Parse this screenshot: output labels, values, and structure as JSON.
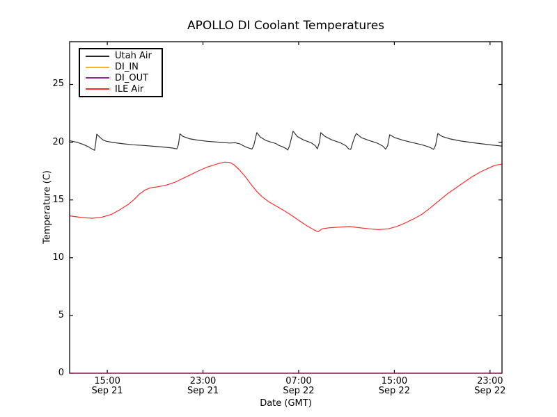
{
  "chart_data": {
    "type": "line",
    "title": "APOLLO DI Coolant Temperatures",
    "xlabel": "Date (GMT)",
    "ylabel": "Temperature (C)",
    "x_unit": "hours since Sep 21 00:00 GMT",
    "x_range": [
      11.85,
      48.0
    ],
    "y_range": [
      0,
      28.7
    ],
    "grid": false,
    "legend_position": "upper left",
    "background": "#ffffff",
    "axis_color": "#000000",
    "y_ticks": [
      0,
      5,
      10,
      15,
      20,
      25
    ],
    "x_ticks": [
      {
        "x": 15,
        "line1": "15:00",
        "line2": "Sep 21"
      },
      {
        "x": 23,
        "line1": "23:00",
        "line2": "Sep 21"
      },
      {
        "x": 31,
        "line1": "07:00",
        "line2": "Sep 22"
      },
      {
        "x": 39,
        "line1": "15:00",
        "line2": "Sep 22"
      },
      {
        "x": 47,
        "line1": "23:00",
        "line2": "Sep 22"
      }
    ],
    "series": [
      {
        "name": "Utah Air",
        "color": "#000000",
        "points": [
          [
            11.85,
            20.13
          ],
          [
            12.43,
            20.0
          ],
          [
            13.01,
            19.8
          ],
          [
            13.42,
            19.6
          ],
          [
            13.77,
            19.38
          ],
          [
            13.94,
            19.3
          ],
          [
            14.03,
            19.9
          ],
          [
            14.12,
            20.7
          ],
          [
            14.35,
            20.45
          ],
          [
            14.64,
            20.2
          ],
          [
            14.93,
            20.08
          ],
          [
            15.46,
            19.98
          ],
          [
            16.21,
            19.88
          ],
          [
            17.09,
            19.78
          ],
          [
            17.96,
            19.72
          ],
          [
            18.83,
            19.65
          ],
          [
            19.7,
            19.58
          ],
          [
            20.4,
            19.5
          ],
          [
            20.81,
            19.42
          ],
          [
            20.95,
            19.8
          ],
          [
            21.07,
            20.72
          ],
          [
            21.33,
            20.5
          ],
          [
            21.86,
            20.3
          ],
          [
            22.55,
            20.18
          ],
          [
            23.37,
            20.08
          ],
          [
            24.36,
            20.0
          ],
          [
            25.23,
            19.93
          ],
          [
            25.7,
            19.95
          ],
          [
            26.1,
            19.85
          ],
          [
            26.51,
            19.62
          ],
          [
            26.86,
            19.48
          ],
          [
            27.09,
            19.4
          ],
          [
            27.24,
            19.7
          ],
          [
            27.38,
            20.3
          ],
          [
            27.5,
            20.83
          ],
          [
            27.79,
            20.45
          ],
          [
            28.26,
            20.15
          ],
          [
            28.78,
            19.97
          ],
          [
            29.07,
            19.9
          ],
          [
            29.3,
            19.75
          ],
          [
            29.65,
            19.6
          ],
          [
            29.94,
            19.45
          ],
          [
            30.09,
            19.32
          ],
          [
            30.24,
            19.7
          ],
          [
            30.41,
            20.4
          ],
          [
            30.53,
            20.95
          ],
          [
            30.88,
            20.5
          ],
          [
            31.4,
            20.2
          ],
          [
            32.04,
            19.95
          ],
          [
            32.39,
            19.7
          ],
          [
            32.56,
            19.42
          ],
          [
            32.74,
            20.0
          ],
          [
            32.85,
            20.83
          ],
          [
            33.2,
            20.5
          ],
          [
            33.78,
            20.2
          ],
          [
            34.48,
            19.95
          ],
          [
            34.95,
            19.7
          ],
          [
            35.18,
            19.42
          ],
          [
            35.35,
            19.38
          ],
          [
            35.5,
            19.9
          ],
          [
            35.7,
            20.5
          ],
          [
            35.82,
            20.75
          ],
          [
            36.23,
            20.4
          ],
          [
            36.87,
            20.15
          ],
          [
            37.57,
            19.92
          ],
          [
            38.03,
            19.67
          ],
          [
            38.27,
            19.4
          ],
          [
            38.44,
            19.7
          ],
          [
            38.61,
            20.65
          ],
          [
            39.02,
            20.4
          ],
          [
            39.78,
            20.15
          ],
          [
            40.59,
            19.95
          ],
          [
            41.41,
            19.75
          ],
          [
            41.99,
            19.55
          ],
          [
            42.28,
            19.38
          ],
          [
            42.45,
            19.75
          ],
          [
            42.63,
            20.75
          ],
          [
            43.03,
            20.48
          ],
          [
            43.67,
            20.28
          ],
          [
            44.55,
            20.1
          ],
          [
            45.59,
            19.95
          ],
          [
            46.76,
            19.8
          ],
          [
            47.46,
            19.72
          ],
          [
            47.98,
            19.67
          ]
        ]
      },
      {
        "name": "DI_IN",
        "color": "#ffa500",
        "points": [
          [
            11.85,
            0
          ],
          [
            47.98,
            0
          ]
        ]
      },
      {
        "name": "DI_OUT",
        "color": "#800080",
        "points": [
          [
            11.85,
            0
          ],
          [
            47.98,
            0
          ]
        ]
      },
      {
        "name": "ILE Air",
        "color": "#ff0000",
        "points": [
          [
            11.85,
            13.62
          ],
          [
            12.9,
            13.48
          ],
          [
            13.71,
            13.42
          ],
          [
            14.53,
            13.5
          ],
          [
            15.34,
            13.75
          ],
          [
            16.04,
            14.15
          ],
          [
            16.74,
            14.6
          ],
          [
            17.2,
            15.0
          ],
          [
            17.67,
            15.5
          ],
          [
            18.13,
            15.85
          ],
          [
            18.6,
            16.05
          ],
          [
            19.3,
            16.15
          ],
          [
            19.99,
            16.3
          ],
          [
            20.69,
            16.55
          ],
          [
            21.39,
            16.9
          ],
          [
            22.09,
            17.25
          ],
          [
            22.79,
            17.6
          ],
          [
            23.37,
            17.85
          ],
          [
            23.84,
            18.0
          ],
          [
            24.3,
            18.15
          ],
          [
            24.77,
            18.27
          ],
          [
            25.23,
            18.25
          ],
          [
            25.58,
            18.05
          ],
          [
            26.05,
            17.6
          ],
          [
            26.51,
            17.05
          ],
          [
            26.98,
            16.4
          ],
          [
            27.44,
            15.8
          ],
          [
            27.91,
            15.3
          ],
          [
            28.49,
            14.85
          ],
          [
            29.07,
            14.5
          ],
          [
            29.65,
            14.15
          ],
          [
            30.35,
            13.7
          ],
          [
            31.05,
            13.2
          ],
          [
            31.75,
            12.72
          ],
          [
            32.27,
            12.42
          ],
          [
            32.62,
            12.25
          ],
          [
            32.97,
            12.5
          ],
          [
            33.61,
            12.6
          ],
          [
            34.42,
            12.65
          ],
          [
            35.24,
            12.7
          ],
          [
            36.05,
            12.6
          ],
          [
            36.87,
            12.5
          ],
          [
            37.68,
            12.43
          ],
          [
            38.5,
            12.5
          ],
          [
            39.2,
            12.7
          ],
          [
            39.89,
            13.0
          ],
          [
            40.59,
            13.35
          ],
          [
            41.29,
            13.75
          ],
          [
            41.99,
            14.3
          ],
          [
            42.69,
            14.9
          ],
          [
            43.39,
            15.5
          ],
          [
            44.08,
            16.0
          ],
          [
            44.78,
            16.5
          ],
          [
            45.48,
            17.0
          ],
          [
            46.18,
            17.42
          ],
          [
            46.76,
            17.7
          ],
          [
            47.34,
            17.97
          ],
          [
            47.69,
            18.05
          ],
          [
            47.98,
            18.1
          ]
        ]
      }
    ]
  }
}
